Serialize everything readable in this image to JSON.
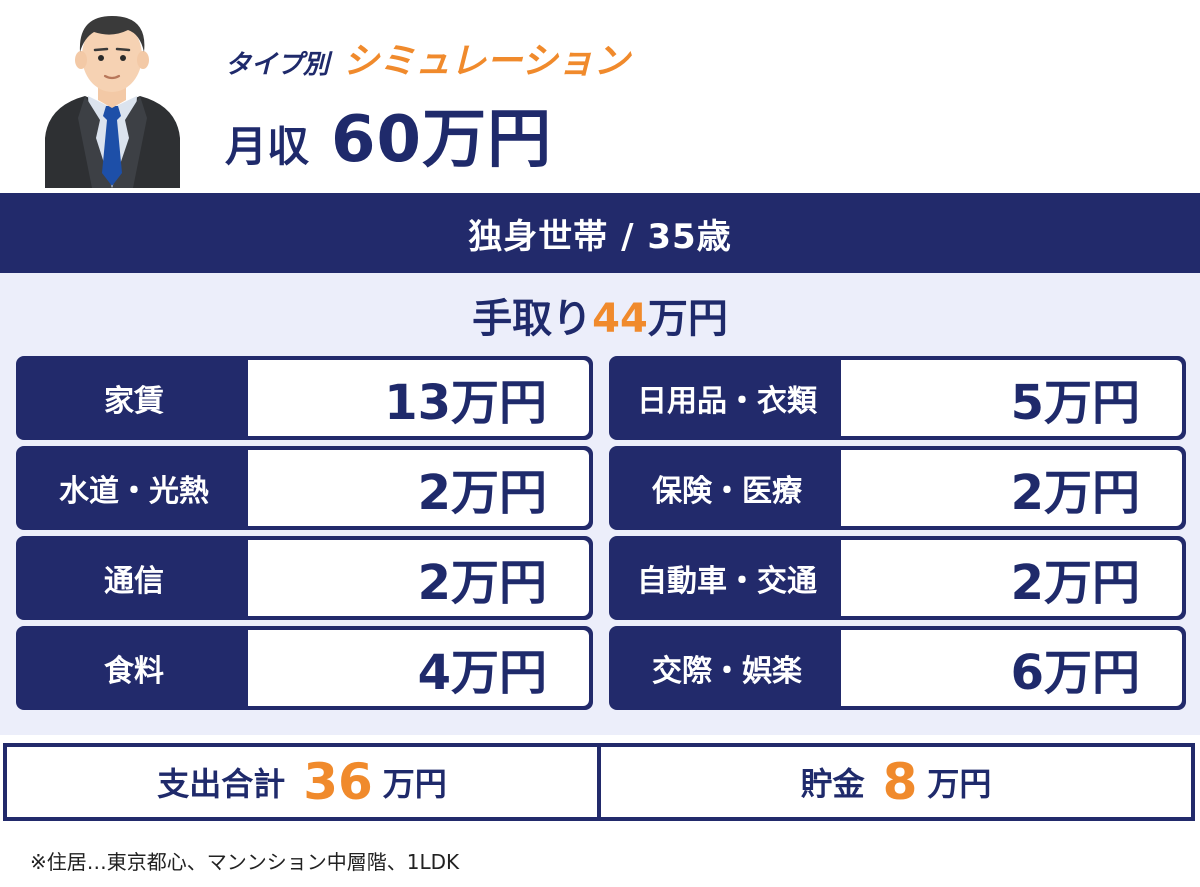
{
  "header": {
    "eyebrow_prefix": "タイプ別",
    "eyebrow_main": "シミュレーション",
    "income_label": "月収",
    "income_value": "60万円"
  },
  "band": {
    "title": "独身世帯 / 35歳"
  },
  "takehome": {
    "prefix": "手取り",
    "amount": "44",
    "unit": "万円"
  },
  "expenses": [
    {
      "label": "家賃",
      "value": "13万円"
    },
    {
      "label": "日用品・衣類",
      "value": "5万円"
    },
    {
      "label": "水道・光熱",
      "value": "2万円"
    },
    {
      "label": "保険・医療",
      "value": "2万円"
    },
    {
      "label": "通信",
      "value": "2万円"
    },
    {
      "label": "自動車・交通",
      "value": "2万円"
    },
    {
      "label": "食料",
      "value": "4万円"
    },
    {
      "label": "交際・娯楽",
      "value": "6万円"
    }
  ],
  "totals": {
    "spend_label": "支出合計",
    "spend_value": "36",
    "spend_unit": "万円",
    "savings_label": "貯金",
    "savings_value": "8",
    "savings_unit": "万円"
  },
  "footnote": "※住居…東京都心、マンンション中層階、1LDK",
  "colors": {
    "navy": "#222a6b",
    "orange": "#f08a2c",
    "panel": "#eceefa"
  },
  "icons": {
    "avatar": "businessman-avatar-icon"
  }
}
